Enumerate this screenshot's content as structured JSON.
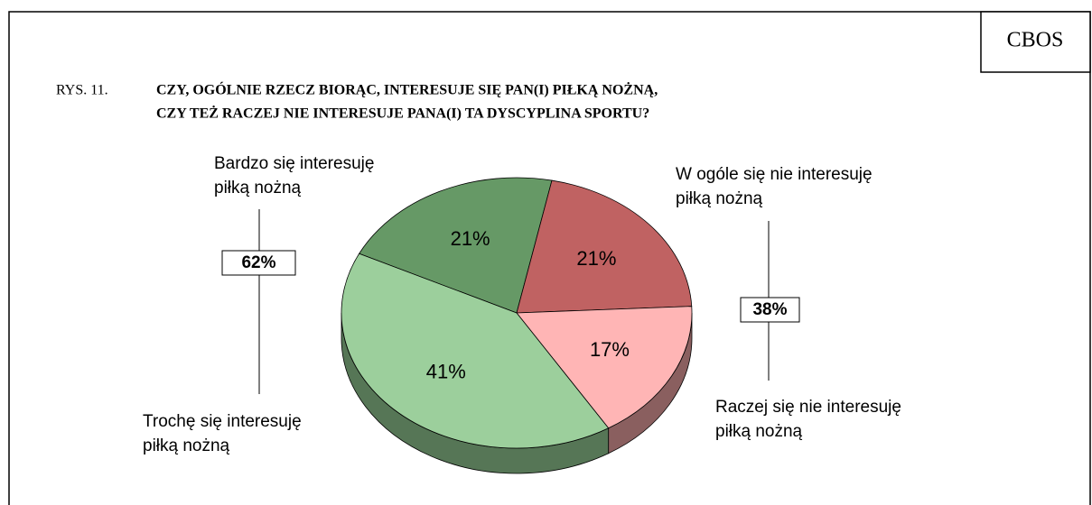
{
  "header": "CBOS",
  "chart_data": {
    "type": "pie",
    "figure_label": "RYS. 11.",
    "title": [
      "CZY, OGÓLNIE RZECZ BIORĄC, INTERESUJE SIĘ PAN(I) PIŁKĄ NOŻNĄ,",
      "CZY TEŻ RACZEJ NIE INTERESUJE PANA(I) TA DYSCYPLINA SPORTU?"
    ],
    "categories": [
      [
        "Bardzo się interesuję",
        "piłką nożną"
      ],
      [
        "W ogóle się nie interesuję",
        "piłką nożną"
      ],
      [
        "Raczej się nie interesuję",
        "piłką nożną"
      ],
      [
        "Trochę się interesuję",
        "piłką nożną"
      ]
    ],
    "values": [
      21,
      21,
      17,
      41
    ],
    "value_labels": [
      "21%",
      "21%",
      "17%",
      "41%"
    ],
    "colors": [
      "#669966",
      "#c06262",
      "#ffb5b5",
      "#9ccf9c"
    ],
    "side_colors": [
      "#3f5f3f",
      "#7a3d3d",
      "#8a5f5f",
      "#567656"
    ],
    "group_totals": [
      62,
      38
    ],
    "group_total_labels": [
      "62%",
      "38%"
    ]
  }
}
